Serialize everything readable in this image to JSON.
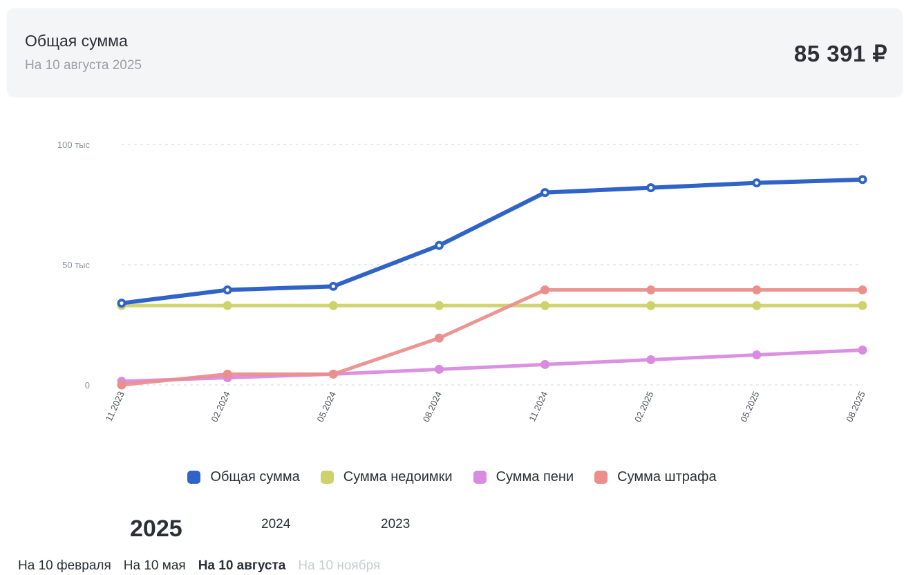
{
  "summary": {
    "title": "Общая сумма",
    "date": "На 10 августа 2025",
    "total": "85 391 ₽"
  },
  "chart_data": {
    "type": "line",
    "categories": [
      "11.2023",
      "02.2024",
      "05.2024",
      "08.2024",
      "11.2024",
      "02.2025",
      "05.2025",
      "08.2025"
    ],
    "y_ticks": [
      {
        "value": 0,
        "label": "0"
      },
      {
        "value": 50000,
        "label": "50 тыс"
      },
      {
        "value": 100000,
        "label": "100 тыс"
      }
    ],
    "ylim": [
      0,
      100000
    ],
    "grid": true,
    "legend_position": "bottom",
    "series": [
      {
        "name": "Общая сумма",
        "color": "#2f63c8",
        "values": [
          34000,
          39500,
          41000,
          58000,
          80000,
          82000,
          84000,
          85391
        ]
      },
      {
        "name": "Сумма недоимки",
        "color": "#cdd36a",
        "values": [
          33000,
          33000,
          33000,
          33000,
          33000,
          33000,
          33000,
          33000
        ]
      },
      {
        "name": "Сумма пени",
        "color": "#d98be0",
        "values": [
          1500,
          3000,
          4500,
          6500,
          8500,
          10500,
          12500,
          14500
        ]
      },
      {
        "name": "Сумма штрафа",
        "color": "#eb8f8c",
        "values": [
          0,
          4500,
          4500,
          19500,
          39500,
          39500,
          39500,
          39500
        ]
      }
    ]
  },
  "years": [
    {
      "label": "2025",
      "active": true
    },
    {
      "label": "2024",
      "active": false
    },
    {
      "label": "2023",
      "active": false
    }
  ],
  "periods": [
    {
      "label": "На 10 февраля",
      "state": "normal"
    },
    {
      "label": "На 10 мая",
      "state": "normal"
    },
    {
      "label": "На 10 августа",
      "state": "active"
    },
    {
      "label": "На 10 ноября",
      "state": "disabled"
    }
  ]
}
